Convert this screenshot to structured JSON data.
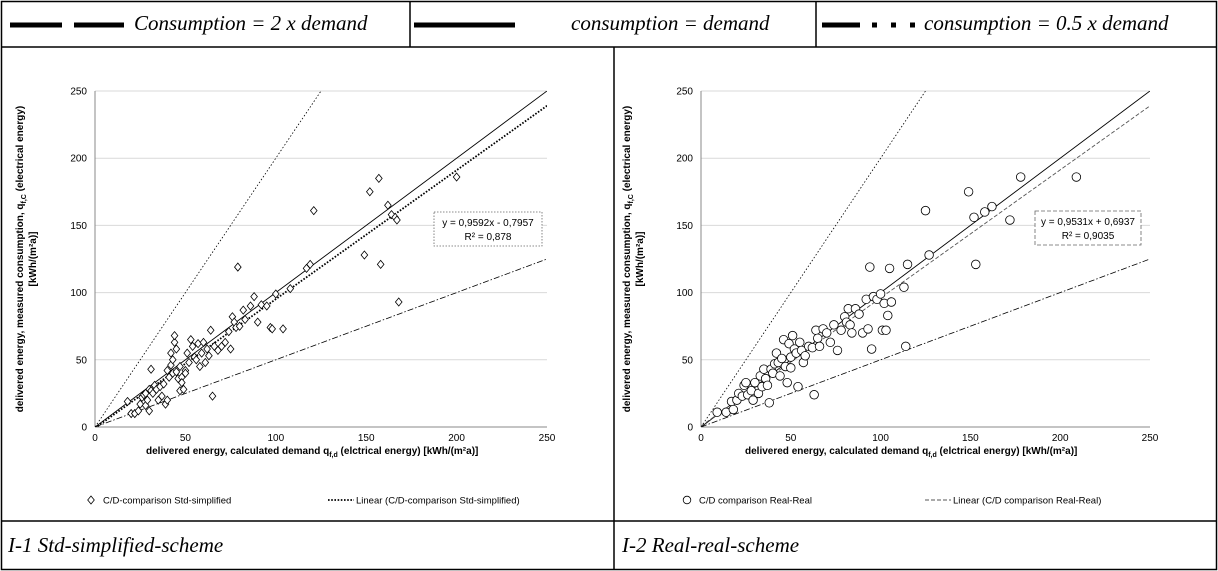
{
  "header": {
    "legend_1": "Consumption = 2 x demand",
    "legend_2": "consumption = demand",
    "legend_3": "consumption = 0.5 x demand"
  },
  "captions": {
    "left": "I-1 Std-simplified-scheme",
    "right": "I-2 Real-real-scheme"
  },
  "chart_data": [
    {
      "type": "scatter",
      "xlabel": "delivered energy, calculated demand q_f,d (elctrical energy) [kWh/(m²a)]",
      "xlabel_main": "delivered energy, calculated demand q",
      "xlabel_sub": "f,d",
      "xlabel_rest": " (elctrical energy) [kWh/(m²a)]",
      "ylabel_line1_main": "delivered energy, measured consumption, q",
      "ylabel_line1_sub": "f,C",
      "ylabel_line1_rest": " (electrical energy)",
      "ylabel_line2": "[kWh/(m²a)]",
      "xlim": [
        0,
        250
      ],
      "ylim": [
        0,
        250
      ],
      "ticks": [
        0,
        50,
        100,
        150,
        200,
        250
      ],
      "tick_labels": [
        "0",
        "50",
        "100",
        "150",
        "200",
        "250"
      ],
      "marker": "diamond",
      "legend": [
        "C/D-comparison Std-simplified",
        "Linear (C/D-comparison Std-simplified)"
      ],
      "trend_style": "dotted",
      "equation": "y = 0,9592x - 0,7957",
      "r2": "R² = 0,878",
      "trend": {
        "slope": 0.9592,
        "intercept": -0.7957
      },
      "points": [
        [
          18,
          19
        ],
        [
          20,
          10
        ],
        [
          22,
          10
        ],
        [
          24,
          12
        ],
        [
          25,
          17
        ],
        [
          26,
          22
        ],
        [
          27,
          24
        ],
        [
          28,
          16
        ],
        [
          28,
          25
        ],
        [
          29,
          20
        ],
        [
          30,
          28
        ],
        [
          30,
          12
        ],
        [
          31,
          43
        ],
        [
          31,
          27
        ],
        [
          32,
          25
        ],
        [
          33,
          31
        ],
        [
          34,
          28
        ],
        [
          35,
          20
        ],
        [
          36,
          30
        ],
        [
          37,
          23
        ],
        [
          38,
          32
        ],
        [
          39,
          17
        ],
        [
          40,
          20
        ],
        [
          40,
          42
        ],
        [
          41,
          37
        ],
        [
          42,
          55
        ],
        [
          42,
          46
        ],
        [
          43,
          40
        ],
        [
          43,
          50
        ],
        [
          44,
          63
        ],
        [
          44,
          68
        ],
        [
          45,
          58
        ],
        [
          45,
          41
        ],
        [
          46,
          36
        ],
        [
          47,
          45
        ],
        [
          47,
          27
        ],
        [
          48,
          37
        ],
        [
          48,
          33
        ],
        [
          49,
          28
        ],
        [
          50,
          42
        ],
        [
          50,
          40
        ],
        [
          51,
          55
        ],
        [
          52,
          48
        ],
        [
          53,
          65
        ],
        [
          54,
          60
        ],
        [
          55,
          52
        ],
        [
          56,
          50
        ],
        [
          57,
          62
        ],
        [
          58,
          45
        ],
        [
          59,
          55
        ],
        [
          60,
          63
        ],
        [
          61,
          48
        ],
        [
          62,
          58
        ],
        [
          63,
          53
        ],
        [
          64,
          72
        ],
        [
          65,
          23
        ],
        [
          66,
          60
        ],
        [
          68,
          57
        ],
        [
          70,
          60
        ],
        [
          72,
          63
        ],
        [
          74,
          71
        ],
        [
          75,
          58
        ],
        [
          76,
          82
        ],
        [
          77,
          78
        ],
        [
          78,
          74
        ],
        [
          79,
          119
        ],
        [
          80,
          75
        ],
        [
          82,
          87
        ],
        [
          83,
          80
        ],
        [
          86,
          90
        ],
        [
          88,
          97
        ],
        [
          90,
          78
        ],
        [
          92,
          91
        ],
        [
          95,
          90
        ],
        [
          97,
          74
        ],
        [
          98,
          73
        ],
        [
          100,
          99
        ],
        [
          104,
          73
        ],
        [
          108,
          103
        ],
        [
          117,
          118
        ],
        [
          119,
          121
        ],
        [
          121,
          161
        ],
        [
          149,
          128
        ],
        [
          152,
          175
        ],
        [
          157,
          185
        ],
        [
          158,
          121
        ],
        [
          162,
          165
        ],
        [
          164,
          158
        ],
        [
          166,
          156
        ],
        [
          167,
          154
        ],
        [
          168,
          93
        ],
        [
          200,
          186
        ]
      ]
    },
    {
      "type": "scatter",
      "xlabel": "delivered energy, calculated demand q_f,d (elctrical energy) [kWh/(m²a)]",
      "xlabel_main": "delivered energy, calculated demand q",
      "xlabel_sub": "f,d",
      "xlabel_rest": " (elctrical energy) [kWh/(m²a)]",
      "ylabel_line1_main": "delivered energy, measured consumption, q",
      "ylabel_line1_sub": "f,C",
      "ylabel_line1_rest": " (electrical energy)",
      "ylabel_line2": "[kWh/(m²a)]",
      "xlim": [
        0,
        250
      ],
      "ylim": [
        0,
        250
      ],
      "ticks": [
        0,
        50,
        100,
        150,
        200,
        250
      ],
      "tick_labels": [
        "0",
        "50",
        "100",
        "150",
        "200",
        "250"
      ],
      "marker": "circle",
      "legend": [
        "C/D comparison Real-Real",
        "Linear (C/D comparison Real-Real)"
      ],
      "trend_style": "dashed",
      "equation": "y = 0,9531x + 0,6937",
      "r2": "R² = 0,9035",
      "trend": {
        "slope": 0.9531,
        "intercept": 0.6937
      },
      "points": [
        [
          9,
          11
        ],
        [
          14,
          11
        ],
        [
          17,
          19
        ],
        [
          18,
          13
        ],
        [
          20,
          20
        ],
        [
          21,
          25
        ],
        [
          23,
          23
        ],
        [
          24,
          31
        ],
        [
          25,
          33
        ],
        [
          26,
          24
        ],
        [
          28,
          27
        ],
        [
          29,
          20
        ],
        [
          30,
          33
        ],
        [
          32,
          25
        ],
        [
          33,
          38
        ],
        [
          34,
          30
        ],
        [
          35,
          43
        ],
        [
          36,
          36
        ],
        [
          37,
          31
        ],
        [
          38,
          18
        ],
        [
          39,
          43
        ],
        [
          40,
          40
        ],
        [
          41,
          47
        ],
        [
          42,
          55
        ],
        [
          43,
          48
        ],
        [
          44,
          38
        ],
        [
          45,
          51
        ],
        [
          46,
          65
        ],
        [
          47,
          45
        ],
        [
          48,
          33
        ],
        [
          49,
          62
        ],
        [
          50,
          52
        ],
        [
          50,
          44
        ],
        [
          51,
          68
        ],
        [
          52,
          58
        ],
        [
          53,
          55
        ],
        [
          54,
          30
        ],
        [
          55,
          63
        ],
        [
          56,
          57
        ],
        [
          57,
          48
        ],
        [
          58,
          53
        ],
        [
          60,
          60
        ],
        [
          62,
          59
        ],
        [
          63,
          24
        ],
        [
          64,
          72
        ],
        [
          65,
          66
        ],
        [
          66,
          60
        ],
        [
          68,
          73
        ],
        [
          70,
          70
        ],
        [
          72,
          63
        ],
        [
          74,
          76
        ],
        [
          76,
          57
        ],
        [
          78,
          72
        ],
        [
          80,
          82
        ],
        [
          81,
          78
        ],
        [
          82,
          88
        ],
        [
          83,
          76
        ],
        [
          84,
          70
        ],
        [
          86,
          88
        ],
        [
          88,
          84
        ],
        [
          90,
          70
        ],
        [
          92,
          95
        ],
        [
          93,
          73
        ],
        [
          94,
          119
        ],
        [
          95,
          58
        ],
        [
          96,
          97
        ],
        [
          98,
          95
        ],
        [
          100,
          99
        ],
        [
          101,
          72
        ],
        [
          102,
          92
        ],
        [
          103,
          72
        ],
        [
          104,
          83
        ],
        [
          105,
          118
        ],
        [
          106,
          93
        ],
        [
          113,
          104
        ],
        [
          114,
          60
        ],
        [
          115,
          121
        ],
        [
          125,
          161
        ],
        [
          127,
          128
        ],
        [
          149,
          175
        ],
        [
          152,
          156
        ],
        [
          153,
          121
        ],
        [
          158,
          160
        ],
        [
          162,
          164
        ],
        [
          172,
          154
        ],
        [
          178,
          186
        ],
        [
          209,
          186
        ]
      ]
    }
  ]
}
